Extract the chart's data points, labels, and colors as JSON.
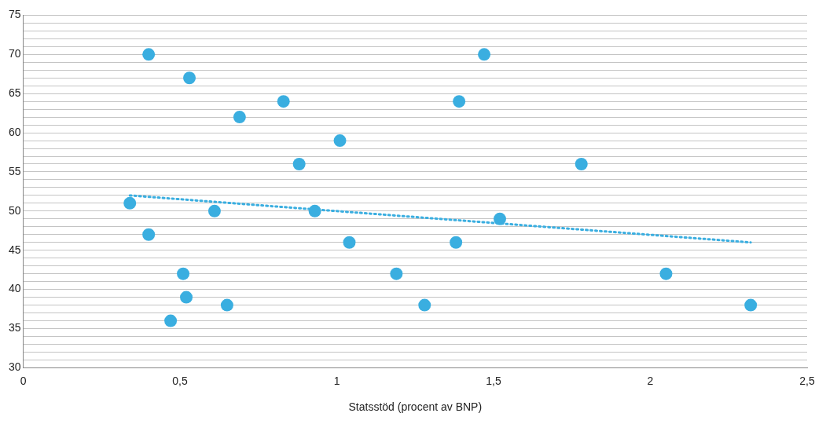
{
  "chart_data": {
    "type": "scatter",
    "xlabel": "Statsstöd (procent av BNP)",
    "xlim": [
      0,
      2.5
    ],
    "xticks": [
      0,
      {
        "value": 0.5,
        "label": "0,5"
      },
      1,
      {
        "value": 1.5,
        "label": "1,5"
      },
      2,
      {
        "value": 2.5,
        "label": "2,5"
      }
    ],
    "ylim": [
      30,
      75
    ],
    "yticks": [
      30,
      {
        "value": 31,
        "label": null
      },
      {
        "value": 32,
        "label": null
      },
      {
        "value": 33,
        "label": null
      },
      {
        "value": 34,
        "label": null
      },
      35,
      {
        "value": 36,
        "label": null
      },
      {
        "value": 37,
        "label": null
      },
      {
        "value": 38,
        "label": null
      },
      {
        "value": 39,
        "label": null
      },
      40,
      {
        "value": 41,
        "label": null
      },
      {
        "value": 42,
        "label": null
      },
      {
        "value": 43,
        "label": null
      },
      {
        "value": 44,
        "label": null
      },
      45,
      {
        "value": 46,
        "label": null
      },
      {
        "value": 47,
        "label": null
      },
      {
        "value": 48,
        "label": null
      },
      {
        "value": 49,
        "label": null
      },
      50,
      {
        "value": 51,
        "label": null
      },
      {
        "value": 52,
        "label": null
      },
      {
        "value": 53,
        "label": null
      },
      {
        "value": 54,
        "label": null
      },
      55,
      {
        "value": 56,
        "label": null
      },
      {
        "value": 57,
        "label": null
      },
      {
        "value": 58,
        "label": null
      },
      {
        "value": 59,
        "label": null
      },
      60,
      {
        "value": 61,
        "label": null
      },
      {
        "value": 62,
        "label": null
      },
      {
        "value": 63,
        "label": null
      },
      {
        "value": 64,
        "label": null
      },
      65,
      {
        "value": 66,
        "label": null
      },
      {
        "value": 67,
        "label": null
      },
      {
        "value": 68,
        "label": null
      },
      {
        "value": 69,
        "label": null
      },
      70,
      {
        "value": 71,
        "label": null
      },
      {
        "value": 72,
        "label": null
      },
      {
        "value": 73,
        "label": null
      },
      {
        "value": 74,
        "label": null
      },
      75
    ],
    "grid": "y",
    "legend": false,
    "marker": "circle",
    "series": [
      {
        "type": "scatter",
        "color": "#3aaee0",
        "x": [
          0.34,
          0.4,
          0.53,
          0.4,
          0.61,
          0.69,
          0.83,
          0.88,
          0.93,
          1.01,
          1.04,
          0.51,
          0.52,
          0.47,
          0.65,
          1.19,
          1.28,
          1.38,
          1.39,
          1.47,
          1.52,
          1.78,
          2.05,
          2.32
        ],
        "values": [
          51,
          70,
          67,
          47,
          50,
          62,
          64,
          56,
          50,
          59,
          46,
          42,
          39,
          36,
          38,
          42,
          38,
          46,
          64,
          70,
          49,
          56,
          42,
          38
        ]
      },
      {
        "type": "line",
        "color": "#3aaee0",
        "line_style": "dotted",
        "marker": "none",
        "x": [
          0.34,
          2.32
        ],
        "values": [
          52,
          46
        ]
      }
    ]
  }
}
